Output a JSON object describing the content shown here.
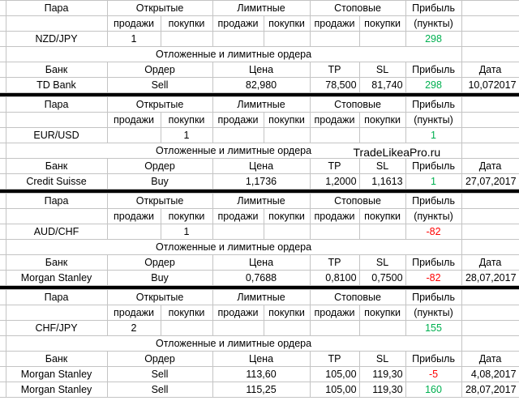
{
  "labels": {
    "pair": "Пара",
    "open": "Открытые",
    "limit": "Лимитные",
    "stop": "Стоповые",
    "profit": "Прибыль",
    "sell": "продажи",
    "buy": "покупки",
    "points": "(пункты)",
    "section": "Отложенные и лимитные ордера",
    "bank": "Банк",
    "order": "Ордер",
    "price": "Цена",
    "tp": "TP",
    "sl": "SL",
    "date": "Дата"
  },
  "blocks": [
    {
      "pair": "NZD/JPY",
      "open": {
        "sell": 1
      },
      "profit": 298,
      "orders": [
        {
          "bank": "TD Bank",
          "order": "Sell",
          "price": "82,980",
          "tp": "78,500",
          "sl": "81,740",
          "profit": 298,
          "date": "10,072017"
        }
      ]
    },
    {
      "pair": "EUR/USD",
      "open": {
        "buy": 1
      },
      "profit": 1,
      "watermark": "TradeLikeaPro.ru",
      "orders": [
        {
          "bank": "Credit Suisse",
          "order": "Buy",
          "price": "1,1736",
          "tp": "1,2000",
          "sl": "1,1613",
          "profit": 1,
          "date": "27,07,2017"
        }
      ]
    },
    {
      "pair": "AUD/CHF",
      "open": {
        "buy": 1
      },
      "profit": -82,
      "orders": [
        {
          "bank": "Morgan Stanley",
          "order": "Buy",
          "price": "0,7688",
          "tp": "0,8100",
          "sl": "0,7500",
          "profit": -82,
          "date": "28,07,2017"
        }
      ]
    },
    {
      "pair": "CHF/JPY",
      "open": {
        "sell": 2
      },
      "profit": 155,
      "orders": [
        {
          "bank": "Morgan Stanley",
          "order": "Sell",
          "price": "113,60",
          "tp": "105,00",
          "sl": "119,30",
          "profit": -5,
          "date": "4,08,2017"
        },
        {
          "bank": "Morgan Stanley",
          "order": "Sell",
          "price": "115,25",
          "tp": "105,00",
          "sl": "119,30",
          "profit": 160,
          "date": "28,07,2017"
        }
      ]
    }
  ]
}
